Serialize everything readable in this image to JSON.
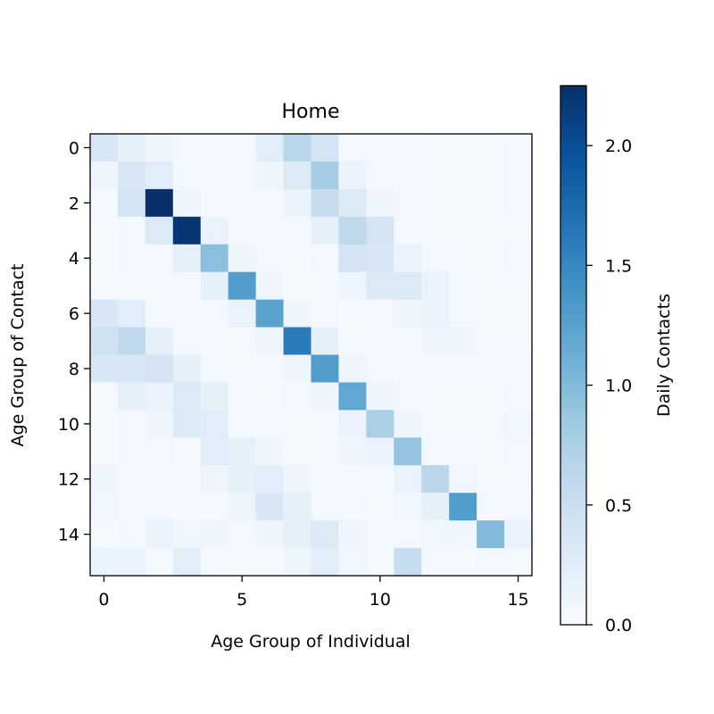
{
  "chart_data": {
    "type": "heatmap",
    "title": "Home",
    "xlabel": "Age Group of Individual",
    "ylabel": "Age Group of Contact",
    "colorbar_label": "Daily Contacts",
    "colormap": "Blues",
    "vmin": 0.0,
    "vmax": 2.25,
    "x_ticks": [
      0,
      5,
      10,
      15
    ],
    "x_tick_labels": [
      "0",
      "5",
      "10",
      "15"
    ],
    "y_ticks": [
      0,
      2,
      4,
      6,
      8,
      10,
      12,
      14
    ],
    "y_tick_labels": [
      "0",
      "2",
      "4",
      "6",
      "8",
      "10",
      "12",
      "14"
    ],
    "colorbar_ticks": [
      0.0,
      0.5,
      1.0,
      1.5,
      2.0
    ],
    "colorbar_tick_labels": [
      "0.0",
      "0.5",
      "1.0",
      "1.5",
      "2.0"
    ],
    "rows": 16,
    "cols": 16,
    "values": [
      [
        0.35,
        0.2,
        0.1,
        0.05,
        0.05,
        0.05,
        0.25,
        0.65,
        0.4,
        0.05,
        0.05,
        0.05,
        0.03,
        0.03,
        0.03,
        0.05
      ],
      [
        0.1,
        0.35,
        0.25,
        0.05,
        0.05,
        0.05,
        0.1,
        0.3,
        0.8,
        0.15,
        0.05,
        0.05,
        0.03,
        0.03,
        0.03,
        0.05
      ],
      [
        0.05,
        0.4,
        2.25,
        0.1,
        0.05,
        0.05,
        0.05,
        0.15,
        0.55,
        0.3,
        0.1,
        0.05,
        0.03,
        0.03,
        0.03,
        0.05
      ],
      [
        0.03,
        0.05,
        0.3,
        2.2,
        0.15,
        0.05,
        0.05,
        0.05,
        0.2,
        0.6,
        0.4,
        0.05,
        0.03,
        0.03,
        0.03,
        0.03
      ],
      [
        0.03,
        0.05,
        0.05,
        0.2,
        0.95,
        0.1,
        0.05,
        0.03,
        0.05,
        0.4,
        0.35,
        0.15,
        0.05,
        0.03,
        0.03,
        0.05
      ],
      [
        0.03,
        0.03,
        0.03,
        0.05,
        0.2,
        1.3,
        0.1,
        0.03,
        0.03,
        0.1,
        0.3,
        0.3,
        0.15,
        0.05,
        0.03,
        0.03
      ],
      [
        0.35,
        0.25,
        0.05,
        0.05,
        0.05,
        0.15,
        1.25,
        0.1,
        0.05,
        0.03,
        0.05,
        0.1,
        0.15,
        0.05,
        0.03,
        0.03
      ],
      [
        0.45,
        0.6,
        0.2,
        0.05,
        0.03,
        0.03,
        0.1,
        1.6,
        0.2,
        0.03,
        0.03,
        0.03,
        0.1,
        0.1,
        0.03,
        0.03
      ],
      [
        0.35,
        0.35,
        0.4,
        0.2,
        0.05,
        0.03,
        0.05,
        0.1,
        1.3,
        0.1,
        0.05,
        0.05,
        0.05,
        0.05,
        0.05,
        0.05
      ],
      [
        0.03,
        0.2,
        0.15,
        0.3,
        0.2,
        0.05,
        0.03,
        0.05,
        0.1,
        1.2,
        0.1,
        0.05,
        0.03,
        0.03,
        0.03,
        0.05
      ],
      [
        0.03,
        0.05,
        0.1,
        0.3,
        0.25,
        0.05,
        0.05,
        0.03,
        0.03,
        0.15,
        0.75,
        0.1,
        0.03,
        0.03,
        0.03,
        0.08
      ],
      [
        0.03,
        0.05,
        0.05,
        0.03,
        0.25,
        0.2,
        0.1,
        0.03,
        0.03,
        0.1,
        0.15,
        0.9,
        0.05,
        0.05,
        0.03,
        0.05
      ],
      [
        0.1,
        0.05,
        0.05,
        0.05,
        0.1,
        0.2,
        0.25,
        0.1,
        0.05,
        0.05,
        0.05,
        0.15,
        0.65,
        0.08,
        0.03,
        0.03
      ],
      [
        0.08,
        0.05,
        0.05,
        0.05,
        0.05,
        0.1,
        0.35,
        0.2,
        0.05,
        0.05,
        0.03,
        0.08,
        0.2,
        1.3,
        0.05,
        0.05
      ],
      [
        0.03,
        0.05,
        0.15,
        0.08,
        0.1,
        0.05,
        0.1,
        0.2,
        0.3,
        0.1,
        0.05,
        0.05,
        0.08,
        0.08,
        1.0,
        0.15
      ],
      [
        0.15,
        0.15,
        0.03,
        0.25,
        0.03,
        0.03,
        0.03,
        0.1,
        0.25,
        0.08,
        0.03,
        0.55,
        0.05,
        0.03,
        0.05,
        0.03
      ]
    ]
  }
}
